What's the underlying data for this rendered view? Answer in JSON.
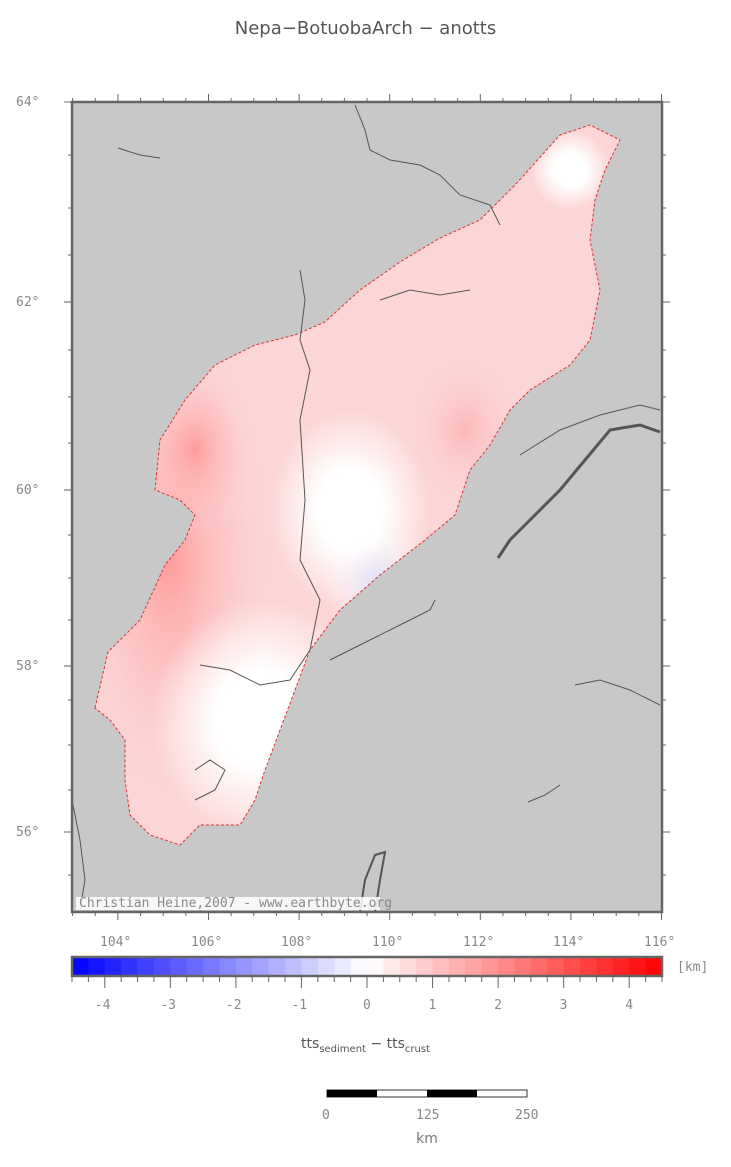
{
  "title": "Nepa−BotuobaArch − anotts",
  "map": {
    "background_color": "#c8c8c8",
    "lon_ticks": [
      "104°",
      "106°",
      "108°",
      "110°",
      "112°",
      "114°",
      "116°"
    ],
    "lat_ticks": [
      "64°",
      "62°",
      "60°",
      "58°",
      "56°"
    ],
    "credit": "Christian Heine,2007 - www.earthbyte.org"
  },
  "colorbar": {
    "unit": "[km]",
    "min": -4.5,
    "max": 4.5,
    "step": 0.25,
    "low_color": "#0000ff",
    "mid_color": "#ffffff",
    "high_color": "#ff0000",
    "tick_labels": [
      "-4",
      "-3",
      "-2",
      "-1",
      "0",
      "1",
      "2",
      "3",
      "4"
    ],
    "label_main_1": "tts",
    "label_sub_1": "sediment",
    "label_sep": " − ",
    "label_main_2": "tts",
    "label_sub_2": "crust"
  },
  "scalebar": {
    "labels": [
      "0",
      "125",
      "250"
    ],
    "unit": "km"
  }
}
